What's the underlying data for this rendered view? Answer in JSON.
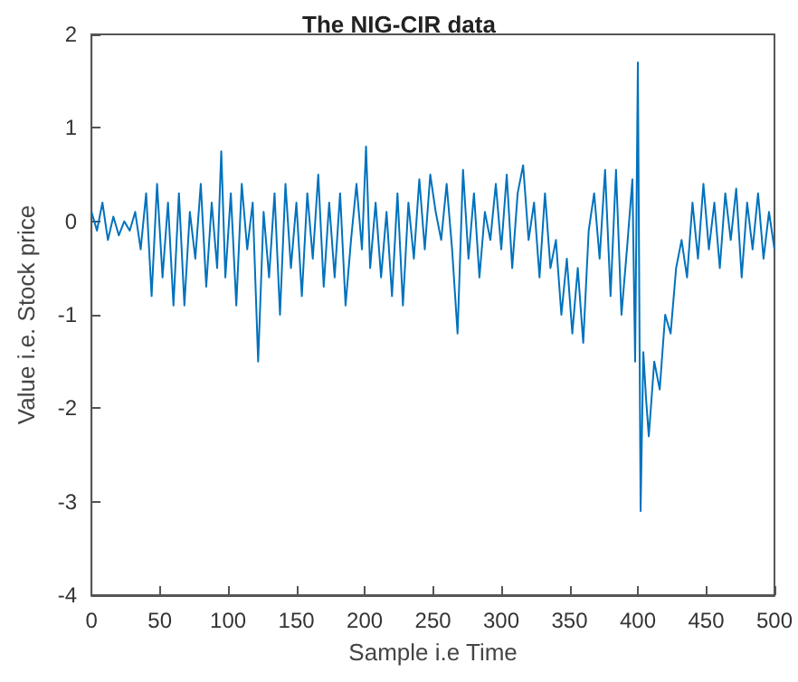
{
  "chart_data": {
    "type": "line",
    "title": "The NIG-CIR data",
    "xlabel": "Sample i.e Time",
    "ylabel": "Value i.e. Stock price",
    "x": [
      0,
      4,
      8,
      12,
      16,
      20,
      24,
      28,
      32,
      36,
      40,
      44,
      48,
      52,
      56,
      60,
      64,
      68,
      72,
      76,
      80,
      84,
      88,
      92,
      95,
      98,
      102,
      106,
      110,
      114,
      118,
      122,
      126,
      130,
      134,
      138,
      142,
      146,
      150,
      154,
      158,
      162,
      166,
      170,
      174,
      178,
      182,
      186,
      190,
      194,
      198,
      201,
      204,
      208,
      212,
      216,
      220,
      224,
      228,
      232,
      236,
      240,
      244,
      248,
      252,
      256,
      260,
      264,
      268,
      272,
      276,
      280,
      284,
      288,
      292,
      296,
      300,
      304,
      308,
      312,
      316,
      320,
      324,
      328,
      332,
      336,
      340,
      344,
      348,
      352,
      356,
      360,
      364,
      368,
      372,
      376,
      380,
      384,
      388,
      392,
      396,
      398,
      400,
      402,
      404,
      406,
      408,
      412,
      416,
      420,
      424,
      428,
      432,
      436,
      440,
      444,
      448,
      452,
      456,
      460,
      464,
      468,
      472,
      476,
      480,
      484,
      488,
      492,
      496,
      500
    ],
    "series": [
      {
        "color": "#0072bd",
        "values": [
          0.1,
          -0.1,
          0.2,
          -0.2,
          0.05,
          -0.15,
          0,
          -0.1,
          0.1,
          -0.3,
          0.3,
          -0.8,
          0.4,
          -0.6,
          0.2,
          -0.9,
          0.3,
          -0.9,
          0.1,
          -0.4,
          0.4,
          -0.7,
          0.2,
          -0.5,
          0.75,
          -0.6,
          0.3,
          -0.9,
          0.4,
          -0.3,
          0.2,
          -1.5,
          0.1,
          -0.6,
          0.3,
          -1.0,
          0.4,
          -0.5,
          0.2,
          -0.8,
          0.3,
          -0.4,
          0.5,
          -0.7,
          0.2,
          -0.6,
          0.3,
          -0.9,
          -0.2,
          0.4,
          -0.3,
          0.8,
          -0.5,
          0.2,
          -0.6,
          0.1,
          -0.8,
          0.3,
          -0.9,
          0.2,
          -0.4,
          0.45,
          -0.3,
          0.5,
          0.1,
          -0.2,
          0.4,
          -0.3,
          -1.2,
          0.55,
          -0.4,
          0.3,
          -0.6,
          0.1,
          -0.2,
          0.4,
          -0.3,
          0.5,
          -0.5,
          0.3,
          0.6,
          -0.2,
          0.2,
          -0.6,
          0.3,
          -0.5,
          -0.2,
          -1.0,
          -0.4,
          -1.2,
          -0.5,
          -1.3,
          -0.1,
          0.3,
          -0.4,
          0.55,
          -0.8,
          0.55,
          -1.0,
          -0.3,
          0.45,
          -1.5,
          1.7,
          -3.1,
          -1.4,
          -1.9,
          -2.3,
          -1.5,
          -1.8,
          -1.0,
          -1.2,
          -0.5,
          -0.2,
          -0.6,
          0.2,
          -0.4,
          0.4,
          -0.3,
          0.2,
          -0.5,
          0.3,
          -0.2,
          0.35,
          -0.6,
          0.2,
          -0.3,
          0.3,
          -0.4,
          0.1,
          -0.3
        ]
      }
    ],
    "xlim": [
      0,
      500
    ],
    "xticks": [
      0,
      50,
      100,
      150,
      200,
      250,
      300,
      350,
      400,
      450,
      500
    ],
    "ylim": [
      -4,
      2
    ],
    "yticks": [
      -4,
      -3,
      -2,
      -1,
      0,
      1,
      2
    ],
    "grid": false,
    "marker": "none",
    "line_style": "solid"
  }
}
